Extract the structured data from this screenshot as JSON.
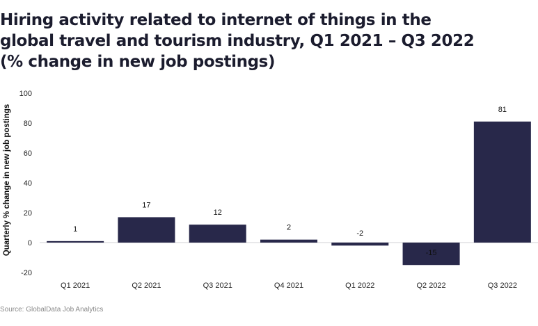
{
  "chart_data": {
    "type": "bar",
    "title": "Hiring activity related to internet of things in the global travel and tourism industry, Q1 2021 – Q3 2022 (% change in new job postings)",
    "xlabel": "",
    "ylabel": "Quarterly % change in new job postings",
    "categories": [
      "Q1 2021",
      "Q2 2021",
      "Q3 2021",
      "Q4 2021",
      "Q1 2022",
      "Q2 2022",
      "Q3 2022"
    ],
    "values": [
      1,
      17,
      12,
      2,
      -2,
      -15,
      81
    ],
    "data_labels": [
      "1",
      "17",
      "12",
      "2",
      "-2",
      "-15",
      "81"
    ],
    "ylim": [
      -20,
      100
    ],
    "yticks": [
      -20,
      0,
      20,
      40,
      60,
      80,
      100
    ],
    "grid": false,
    "bar_color": "#28284a",
    "baseline_color": "#d0d0d6"
  },
  "source": "Source: GlobalData Job Analytics"
}
